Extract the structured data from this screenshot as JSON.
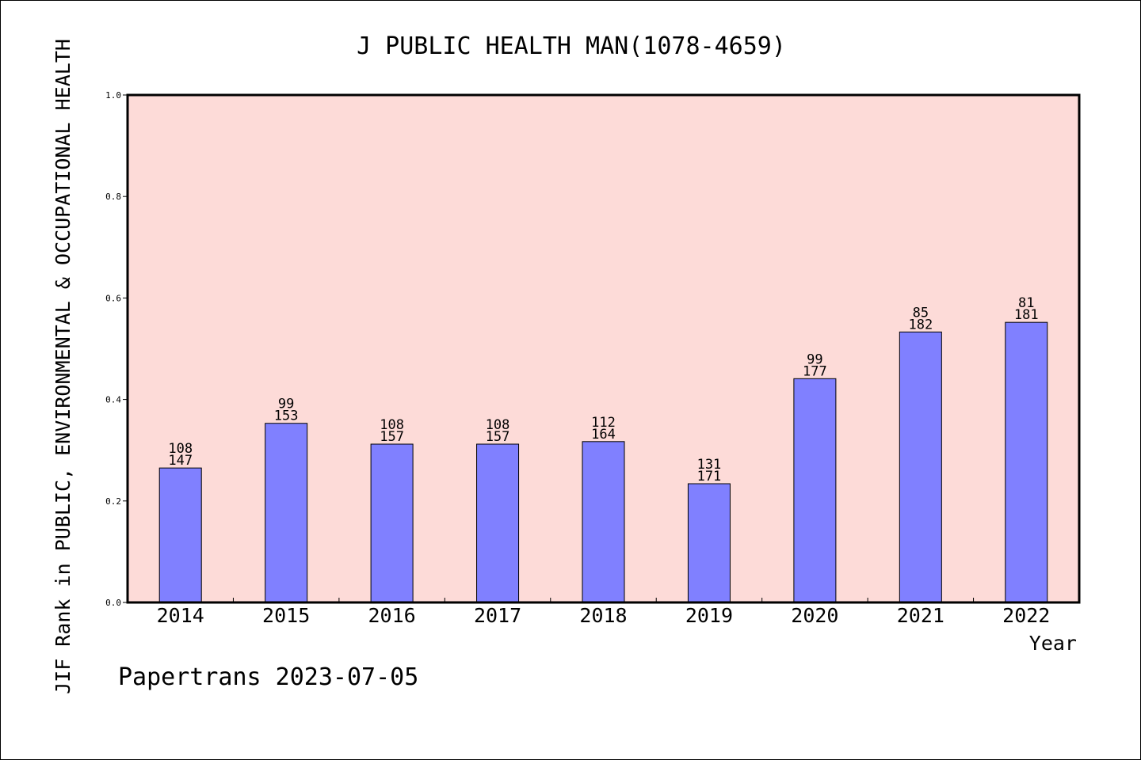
{
  "footer": {
    "text": "Papertrans 2023-07-05"
  },
  "colors": {
    "plot_background": "#fddbd8",
    "bar_fill": "#8080ff",
    "bar_stroke": "#000000",
    "axis": "#000000"
  },
  "chart_data": {
    "type": "bar",
    "title": "J PUBLIC HEALTH MAN(1078-4659)",
    "xlabel": "Year",
    "ylabel": "JIF Rank in PUBLIC, ENVIRONMENTAL & OCCUPATIONAL HEALTH",
    "ylim": [
      0.0,
      1.0
    ],
    "yticks": [
      "0.0",
      "0.2",
      "0.4",
      "0.6",
      "0.8",
      "1.0"
    ],
    "ytick_values": [
      0.0,
      0.2,
      0.4,
      0.6,
      0.8,
      1.0
    ],
    "grid": false,
    "categories": [
      "2014",
      "2015",
      "2016",
      "2017",
      "2018",
      "2019",
      "2020",
      "2021",
      "2022"
    ],
    "values": [
      0.265,
      0.353,
      0.312,
      0.312,
      0.317,
      0.234,
      0.441,
      0.533,
      0.552
    ],
    "rank": [
      "108",
      "99",
      "108",
      "108",
      "112",
      "131",
      "99",
      "85",
      "81"
    ],
    "total": [
      "147",
      "153",
      "157",
      "157",
      "164",
      "171",
      "177",
      "182",
      "181"
    ]
  }
}
